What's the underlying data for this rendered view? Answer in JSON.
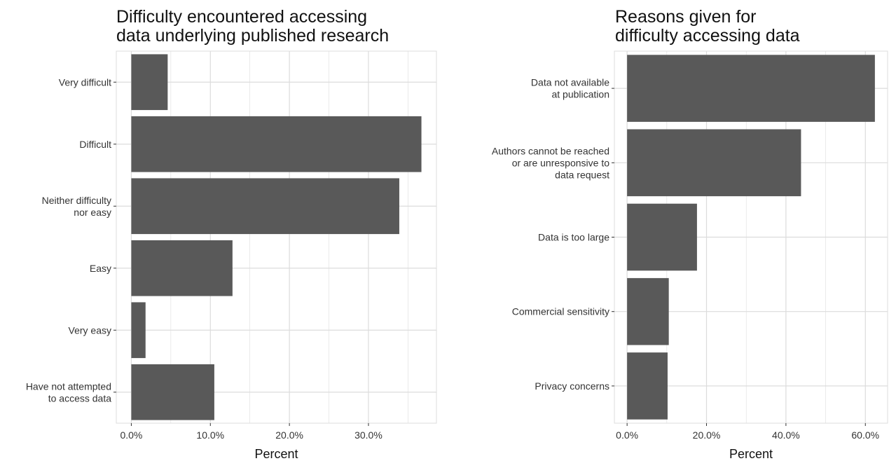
{
  "chart_data": [
    {
      "type": "bar",
      "orientation": "horizontal",
      "title": "Difficulty encountered accessing data underlying published research",
      "title_lines": [
        "Difficulty encountered accessing",
        "data underlying published research"
      ],
      "categories": [
        "Very difficult",
        "Difficult",
        "Neither difficulty nor easy",
        "Easy",
        "Very easy",
        "Have not attempted to access data"
      ],
      "category_lines": [
        [
          "Very difficult"
        ],
        [
          "Difficult"
        ],
        [
          "Neither difficulty",
          "nor easy"
        ],
        [
          "Easy"
        ],
        [
          "Very easy"
        ],
        [
          "Have not attempted",
          "to access data"
        ]
      ],
      "values": [
        4.6,
        36.7,
        33.9,
        12.8,
        1.8,
        10.5
      ],
      "xlabel": "Percent",
      "ylabel": "",
      "xlim": [
        -1.9,
        38.6
      ],
      "xticks": [
        0,
        10,
        20,
        30
      ],
      "xtick_labels": [
        "0.0%",
        "10.0%",
        "20.0%",
        "30.0%"
      ],
      "grid": true,
      "bar_color": "#595959",
      "grid_color": "#dcdcdc"
    },
    {
      "type": "bar",
      "orientation": "horizontal",
      "title": "Reasons given for difficulty accessing data",
      "title_lines": [
        "Reasons given for",
        "difficulty accessing data"
      ],
      "categories": [
        "Data not available at publication",
        "Authors cannot be reached or are unresponsive to data request",
        "Data is too large",
        "Commercial sensitivity",
        "Privacy concerns"
      ],
      "category_lines": [
        [
          "Data not available",
          "at publication"
        ],
        [
          "Authors cannot be reached",
          "or are unresponsive to",
          "data request"
        ],
        [
          "Data is too large"
        ],
        [
          "Commercial sensitivity"
        ],
        [
          "Privacy concerns"
        ]
      ],
      "values": [
        62.4,
        43.8,
        17.6,
        10.5,
        10.2
      ],
      "xlabel": "Percent",
      "ylabel": "",
      "xlim": [
        -3.2,
        65.6
      ],
      "xticks": [
        0,
        20,
        40,
        60
      ],
      "xtick_labels": [
        "0.0%",
        "20.0%",
        "40.0%",
        "60.0%"
      ],
      "grid": true,
      "bar_color": "#595959",
      "grid_color": "#dcdcdc"
    }
  ]
}
